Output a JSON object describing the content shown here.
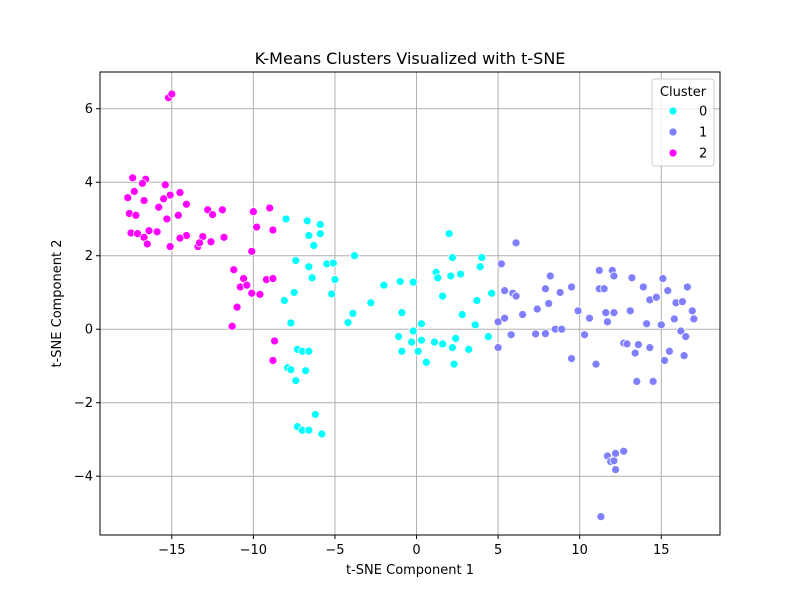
{
  "chart_data": {
    "type": "scatter",
    "title": "K-Means Clusters Visualized with t-SNE",
    "xlabel": "t-SNE Component 1",
    "ylabel": "t-SNE Component 2",
    "xlim": [
      -19.4,
      18.6
    ],
    "ylim": [
      -5.6,
      7.0
    ],
    "xticks": [
      -15,
      -10,
      -5,
      0,
      5,
      10,
      15
    ],
    "xtick_labels": [
      "−15",
      "−10",
      "−5",
      "0",
      "5",
      "10",
      "15"
    ],
    "yticks": [
      -4,
      -2,
      0,
      2,
      4,
      6
    ],
    "ytick_labels": [
      "−4",
      "−2",
      "0",
      "2",
      "4",
      "6"
    ],
    "grid": true,
    "legend": {
      "title": "Cluster",
      "placement": "top-right",
      "entries": [
        {
          "label": "0",
          "color": "#00ffff"
        },
        {
          "label": "1",
          "color": "#7f7fff"
        },
        {
          "label": "2",
          "color": "#ff00ff"
        }
      ]
    },
    "series": [
      {
        "name": "0",
        "color": "#00ffff",
        "points": [
          [
            -8.0,
            3.0
          ],
          [
            -6.7,
            2.95
          ],
          [
            -5.9,
            2.85
          ],
          [
            -5.9,
            2.6
          ],
          [
            -6.6,
            2.55
          ],
          [
            -6.3,
            2.28
          ],
          [
            -3.8,
            2.0
          ],
          [
            -7.4,
            1.87
          ],
          [
            -6.6,
            1.7
          ],
          [
            -5.5,
            1.78
          ],
          [
            -5.1,
            1.8
          ],
          [
            -6.4,
            1.4
          ],
          [
            -5.0,
            1.35
          ],
          [
            -7.5,
            1.0
          ],
          [
            -5.2,
            0.96
          ],
          [
            -8.1,
            0.78
          ],
          [
            -3.9,
            0.43
          ],
          [
            -4.2,
            0.18
          ],
          [
            -7.7,
            0.17
          ],
          [
            -2.8,
            0.72
          ],
          [
            -2.0,
            1.2
          ],
          [
            -1.0,
            1.3
          ],
          [
            -0.2,
            1.28
          ],
          [
            -7.3,
            -0.55
          ],
          [
            -7.0,
            -0.6
          ],
          [
            -6.6,
            -0.6
          ],
          [
            -7.9,
            -1.05
          ],
          [
            -7.7,
            -1.1
          ],
          [
            -6.8,
            -1.13
          ],
          [
            -7.4,
            -1.4
          ],
          [
            -7.3,
            -2.65
          ],
          [
            -7.0,
            -2.75
          ],
          [
            -6.6,
            -2.75
          ],
          [
            -6.2,
            -2.32
          ],
          [
            -5.8,
            -2.85
          ],
          [
            -0.9,
            0.45
          ],
          [
            -1.1,
            -0.2
          ],
          [
            -0.9,
            -0.6
          ],
          [
            -0.3,
            -0.35
          ],
          [
            -0.2,
            -0.05
          ],
          [
            0.1,
            -0.6
          ],
          [
            0.3,
            0.15
          ],
          [
            0.3,
            -0.3
          ],
          [
            0.6,
            -0.9
          ],
          [
            1.1,
            -0.35
          ],
          [
            1.2,
            1.55
          ],
          [
            1.3,
            1.4
          ],
          [
            1.6,
            -0.4
          ],
          [
            1.6,
            0.9
          ],
          [
            2.0,
            2.6
          ],
          [
            2.1,
            1.45
          ],
          [
            2.2,
            1.95
          ],
          [
            2.2,
            -0.5
          ],
          [
            2.3,
            -0.95
          ],
          [
            2.4,
            -0.25
          ],
          [
            2.7,
            1.5
          ],
          [
            2.8,
            0.4
          ],
          [
            3.2,
            -0.55
          ],
          [
            3.6,
            0.12
          ],
          [
            3.7,
            0.78
          ],
          [
            3.9,
            1.7
          ],
          [
            4.0,
            1.95
          ],
          [
            4.4,
            -0.2
          ],
          [
            4.6,
            0.98
          ]
        ]
      },
      {
        "name": "1",
        "color": "#7f7fff",
        "points": [
          [
            5.0,
            0.2
          ],
          [
            5.0,
            -0.5
          ],
          [
            5.2,
            1.78
          ],
          [
            5.4,
            1.05
          ],
          [
            5.4,
            0.3
          ],
          [
            5.8,
            -0.15
          ],
          [
            5.9,
            0.98
          ],
          [
            6.1,
            0.9
          ],
          [
            6.1,
            2.35
          ],
          [
            6.5,
            0.4
          ],
          [
            7.3,
            -0.13
          ],
          [
            7.4,
            0.55
          ],
          [
            7.9,
            1.1
          ],
          [
            7.9,
            -0.12
          ],
          [
            8.1,
            0.7
          ],
          [
            8.2,
            1.45
          ],
          [
            8.5,
            0.0
          ],
          [
            8.8,
            1.0
          ],
          [
            8.9,
            0.0
          ],
          [
            9.5,
            1.15
          ],
          [
            9.5,
            -0.8
          ],
          [
            9.9,
            0.5
          ],
          [
            10.3,
            -0.15
          ],
          [
            10.6,
            0.3
          ],
          [
            11.0,
            -0.95
          ],
          [
            11.2,
            1.6
          ],
          [
            11.2,
            1.1
          ],
          [
            11.5,
            1.1
          ],
          [
            11.6,
            0.45
          ],
          [
            11.7,
            0.2
          ],
          [
            12.0,
            1.6
          ],
          [
            12.1,
            1.45
          ],
          [
            12.1,
            0.45
          ],
          [
            12.7,
            -0.38
          ],
          [
            12.9,
            -0.4
          ],
          [
            13.1,
            0.5
          ],
          [
            13.2,
            1.4
          ],
          [
            13.4,
            -0.65
          ],
          [
            13.5,
            -1.42
          ],
          [
            13.6,
            -0.42
          ],
          [
            13.9,
            1.15
          ],
          [
            14.1,
            0.15
          ],
          [
            14.3,
            0.8
          ],
          [
            14.3,
            -0.5
          ],
          [
            14.5,
            -1.42
          ],
          [
            14.7,
            0.87
          ],
          [
            15.0,
            0.12
          ],
          [
            15.1,
            1.38
          ],
          [
            15.2,
            -0.85
          ],
          [
            15.4,
            1.05
          ],
          [
            15.5,
            -0.6
          ],
          [
            15.8,
            0.28
          ],
          [
            15.9,
            0.72
          ],
          [
            16.2,
            -0.05
          ],
          [
            16.3,
            0.75
          ],
          [
            16.4,
            -0.72
          ],
          [
            16.5,
            -0.2
          ],
          [
            16.6,
            1.15
          ],
          [
            16.9,
            0.5
          ],
          [
            17.0,
            0.28
          ],
          [
            11.7,
            -3.45
          ],
          [
            11.9,
            -3.6
          ],
          [
            12.1,
            -3.58
          ],
          [
            12.2,
            -3.38
          ],
          [
            12.2,
            -3.82
          ],
          [
            12.7,
            -3.32
          ],
          [
            11.3,
            -5.1
          ]
        ]
      },
      {
        "name": "2",
        "color": "#ff00ff",
        "points": [
          [
            -15.2,
            6.3
          ],
          [
            -15.0,
            6.4
          ],
          [
            -17.4,
            4.12
          ],
          [
            -16.6,
            4.08
          ],
          [
            -16.8,
            3.97
          ],
          [
            -15.4,
            3.93
          ],
          [
            -17.3,
            3.75
          ],
          [
            -15.1,
            3.65
          ],
          [
            -14.5,
            3.72
          ],
          [
            -17.7,
            3.58
          ],
          [
            -16.7,
            3.5
          ],
          [
            -15.5,
            3.55
          ],
          [
            -14.1,
            3.4
          ],
          [
            -15.8,
            3.32
          ],
          [
            -12.8,
            3.25
          ],
          [
            -11.9,
            3.25
          ],
          [
            -17.6,
            3.15
          ],
          [
            -17.2,
            3.1
          ],
          [
            -14.6,
            3.1
          ],
          [
            -12.5,
            3.12
          ],
          [
            -15.3,
            3.0
          ],
          [
            -16.4,
            2.68
          ],
          [
            -15.9,
            2.65
          ],
          [
            -17.5,
            2.62
          ],
          [
            -17.1,
            2.6
          ],
          [
            -14.1,
            2.55
          ],
          [
            -16.7,
            2.5
          ],
          [
            -14.5,
            2.48
          ],
          [
            -13.1,
            2.52
          ],
          [
            -12.6,
            2.38
          ],
          [
            -11.8,
            2.5
          ],
          [
            -16.5,
            2.32
          ],
          [
            -15.1,
            2.25
          ],
          [
            -13.4,
            2.25
          ],
          [
            -13.3,
            2.35
          ],
          [
            -9.0,
            3.3
          ],
          [
            -10.0,
            3.2
          ],
          [
            -9.8,
            2.78
          ],
          [
            -8.8,
            2.7
          ],
          [
            -10.1,
            2.12
          ],
          [
            -11.2,
            1.62
          ],
          [
            -10.6,
            1.38
          ],
          [
            -10.8,
            1.15
          ],
          [
            -10.4,
            1.2
          ],
          [
            -9.2,
            1.35
          ],
          [
            -8.8,
            1.38
          ],
          [
            -10.1,
            0.98
          ],
          [
            -9.6,
            0.95
          ],
          [
            -11.0,
            0.6
          ],
          [
            -11.3,
            0.08
          ],
          [
            -8.7,
            -0.32
          ],
          [
            -8.8,
            -0.85
          ]
        ]
      }
    ]
  }
}
